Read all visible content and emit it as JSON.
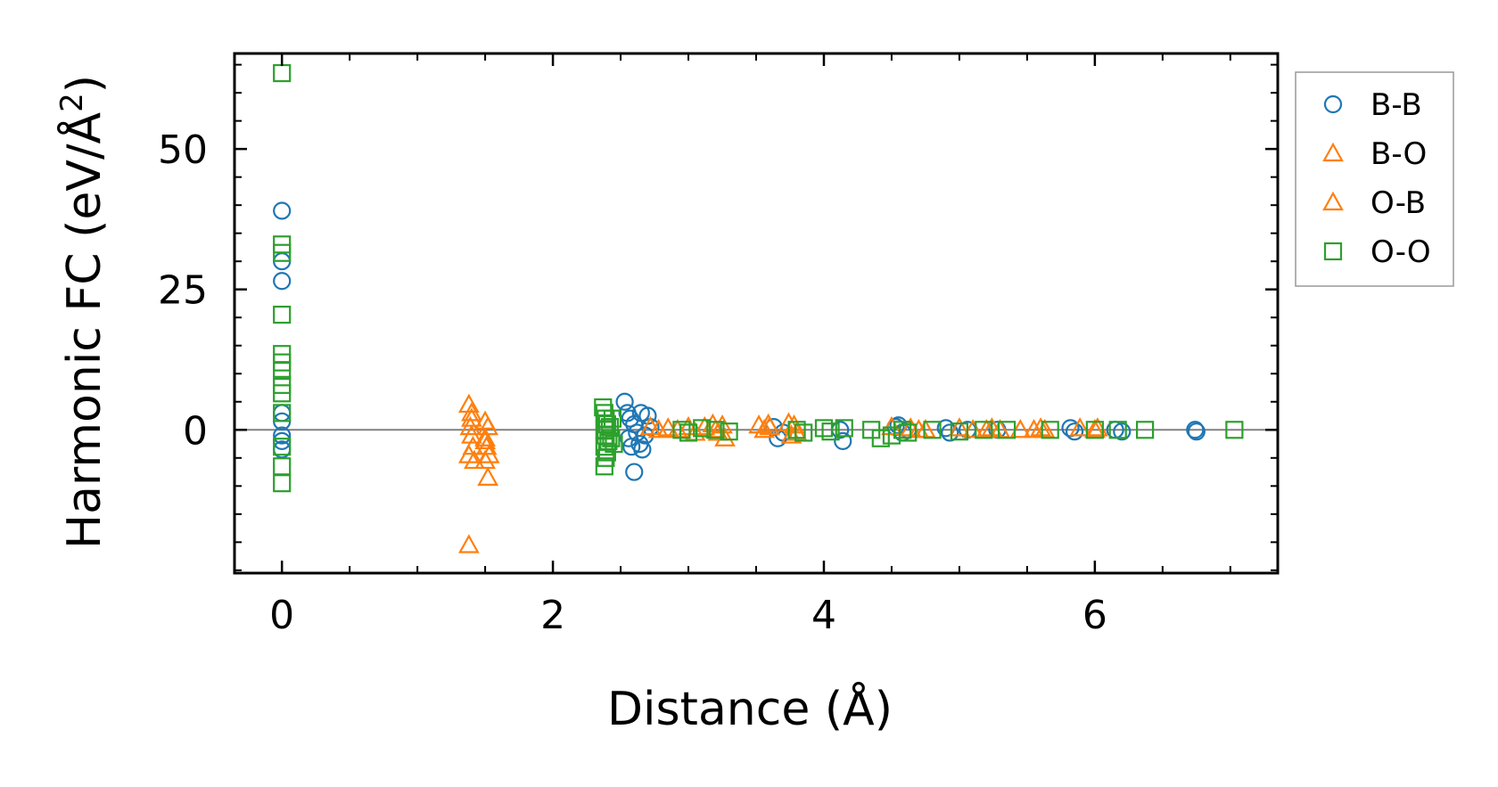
{
  "chart_data": {
    "type": "scatter",
    "xlabel": "Distance (Å)",
    "ylabel_main": "Harmonic FC (eV/Å",
    "ylabel_sup": "2",
    "ylabel_close": ")",
    "xlim": [
      -0.35,
      7.35
    ],
    "ylim": [
      -25.5,
      67
    ],
    "x_ticks": [
      0,
      2,
      4,
      6
    ],
    "x_tick_labels": [
      "0",
      "2",
      "4",
      "6"
    ],
    "y_ticks": [
      0,
      25,
      50
    ],
    "y_tick_labels": [
      "0",
      "25",
      "50"
    ],
    "x_minor_step": 0.5,
    "y_minor_step": 5,
    "zero_line": true,
    "grid": false,
    "legend_position": "outside-right-top",
    "series": [
      {
        "name": "B-B",
        "marker": "circle",
        "color": "#1f77b4",
        "points": [
          [
            0,
            39
          ],
          [
            0,
            30
          ],
          [
            0,
            26.5
          ],
          [
            0,
            3
          ],
          [
            0,
            1.5
          ],
          [
            0,
            -1
          ],
          [
            0,
            -2
          ],
          [
            0,
            -3.5
          ],
          [
            2.53,
            5
          ],
          [
            2.55,
            3
          ],
          [
            2.57,
            2
          ],
          [
            2.6,
            1
          ],
          [
            2.62,
            -0.5
          ],
          [
            2.56,
            -1.5
          ],
          [
            2.64,
            -2.5
          ],
          [
            2.58,
            -3
          ],
          [
            2.66,
            -3.5
          ],
          [
            2.6,
            -7.5
          ],
          [
            2.65,
            3
          ],
          [
            2.7,
            2.5
          ],
          [
            2.68,
            -1
          ],
          [
            2.72,
            0.5
          ],
          [
            3.63,
            0.5
          ],
          [
            3.66,
            -1.5
          ],
          [
            3.7,
            -0.5
          ],
          [
            4.14,
            -2
          ],
          [
            4.12,
            0
          ],
          [
            4.53,
            0.5
          ],
          [
            4.58,
            -0.5
          ],
          [
            4.62,
            0
          ],
          [
            4.55,
            0.8
          ],
          [
            4.93,
            -0.5
          ],
          [
            4.9,
            0.3
          ],
          [
            5.06,
            0
          ],
          [
            5.28,
            0
          ],
          [
            5.82,
            0.3
          ],
          [
            5.85,
            -0.3
          ],
          [
            6.15,
            0
          ],
          [
            6.2,
            -0.3
          ],
          [
            6.74,
            0
          ],
          [
            6.75,
            -0.3
          ]
        ]
      },
      {
        "name": "B-O",
        "marker": "triangle",
        "color": "#ff7f0e",
        "points": [
          [
            1.38,
            4.5
          ],
          [
            1.4,
            3
          ],
          [
            1.39,
            0.5
          ],
          [
            1.4,
            -1
          ],
          [
            1.41,
            -3
          ],
          [
            1.38,
            -4.5
          ],
          [
            1.42,
            -5.5
          ],
          [
            1.38,
            -20.5
          ],
          [
            1.5,
            1.5
          ],
          [
            1.52,
            0.5
          ],
          [
            1.5,
            -1.5
          ],
          [
            1.51,
            -3
          ],
          [
            1.53,
            -4.5
          ],
          [
            1.5,
            -5.5
          ],
          [
            1.52,
            -8.5
          ],
          [
            2.72,
            0.5
          ],
          [
            2.78,
            0
          ],
          [
            2.85,
            0.3
          ],
          [
            2.92,
            0
          ],
          [
            3.0,
            0.5
          ],
          [
            3.05,
            -0.5
          ],
          [
            3.12,
            0.5
          ],
          [
            3.18,
            1
          ],
          [
            3.22,
            -0.5
          ],
          [
            3.25,
            0.8
          ],
          [
            3.27,
            -1.5
          ],
          [
            3.52,
            0.8
          ],
          [
            3.56,
            0
          ],
          [
            3.59,
            1
          ],
          [
            3.74,
            1.2
          ],
          [
            3.78,
            0.8
          ],
          [
            3.8,
            -0.5
          ],
          [
            3.76,
            -1
          ],
          [
            4.5,
            0.5
          ],
          [
            4.64,
            0.3
          ],
          [
            4.75,
            0
          ],
          [
            5.0,
            0.3
          ],
          [
            5.1,
            0
          ],
          [
            5.24,
            0.3
          ],
          [
            5.3,
            0
          ],
          [
            5.45,
            0
          ],
          [
            5.55,
            0
          ],
          [
            5.63,
            0
          ],
          [
            5.89,
            0.3
          ],
          [
            6.0,
            0
          ],
          [
            6.02,
            0.3
          ]
        ]
      },
      {
        "name": "O-B",
        "marker": "triangle",
        "color": "#ff7f0e",
        "points": [
          [
            1.4,
            2
          ],
          [
            1.5,
            -2
          ],
          [
            3.2,
            0
          ],
          [
            3.6,
            0.5
          ],
          [
            4.7,
            0
          ],
          [
            5.2,
            0
          ],
          [
            5.6,
            0.3
          ]
        ]
      },
      {
        "name": "O-O",
        "marker": "square",
        "color": "#2ca02c",
        "points": [
          [
            0,
            63.5
          ],
          [
            0,
            33
          ],
          [
            0,
            31.5
          ],
          [
            0,
            20.5
          ],
          [
            0,
            13.5
          ],
          [
            0,
            12
          ],
          [
            0,
            10.5
          ],
          [
            0,
            8
          ],
          [
            0,
            6.5
          ],
          [
            0,
            3
          ],
          [
            0,
            -3
          ],
          [
            0,
            -6.5
          ],
          [
            0,
            -9.5
          ],
          [
            2.37,
            4
          ],
          [
            2.38,
            3
          ],
          [
            2.39,
            2
          ],
          [
            2.4,
            1
          ],
          [
            2.38,
            0
          ],
          [
            2.39,
            -1
          ],
          [
            2.41,
            -2
          ],
          [
            2.38,
            -3
          ],
          [
            2.4,
            -4
          ],
          [
            2.39,
            -5
          ],
          [
            2.38,
            -6.5
          ],
          [
            2.42,
            0.5
          ],
          [
            2.43,
            -1.5
          ],
          [
            2.44,
            2
          ],
          [
            2.45,
            -2.5
          ],
          [
            2.95,
            0
          ],
          [
            3.0,
            -0.5
          ],
          [
            3.1,
            0.3
          ],
          [
            3.2,
            0
          ],
          [
            3.3,
            -0.3
          ],
          [
            3.8,
            0
          ],
          [
            3.85,
            -0.5
          ],
          [
            4.0,
            0.3
          ],
          [
            4.05,
            -0.3
          ],
          [
            4.15,
            0.3
          ],
          [
            4.35,
            0
          ],
          [
            4.42,
            -1.5
          ],
          [
            4.5,
            -1
          ],
          [
            4.58,
            0
          ],
          [
            4.62,
            -0.5
          ],
          [
            4.8,
            0
          ],
          [
            5.0,
            -0.3
          ],
          [
            5.18,
            0
          ],
          [
            5.35,
            0
          ],
          [
            5.67,
            0
          ],
          [
            6.0,
            0
          ],
          [
            6.17,
            0
          ],
          [
            6.37,
            0
          ],
          [
            7.03,
            0
          ]
        ]
      }
    ]
  }
}
